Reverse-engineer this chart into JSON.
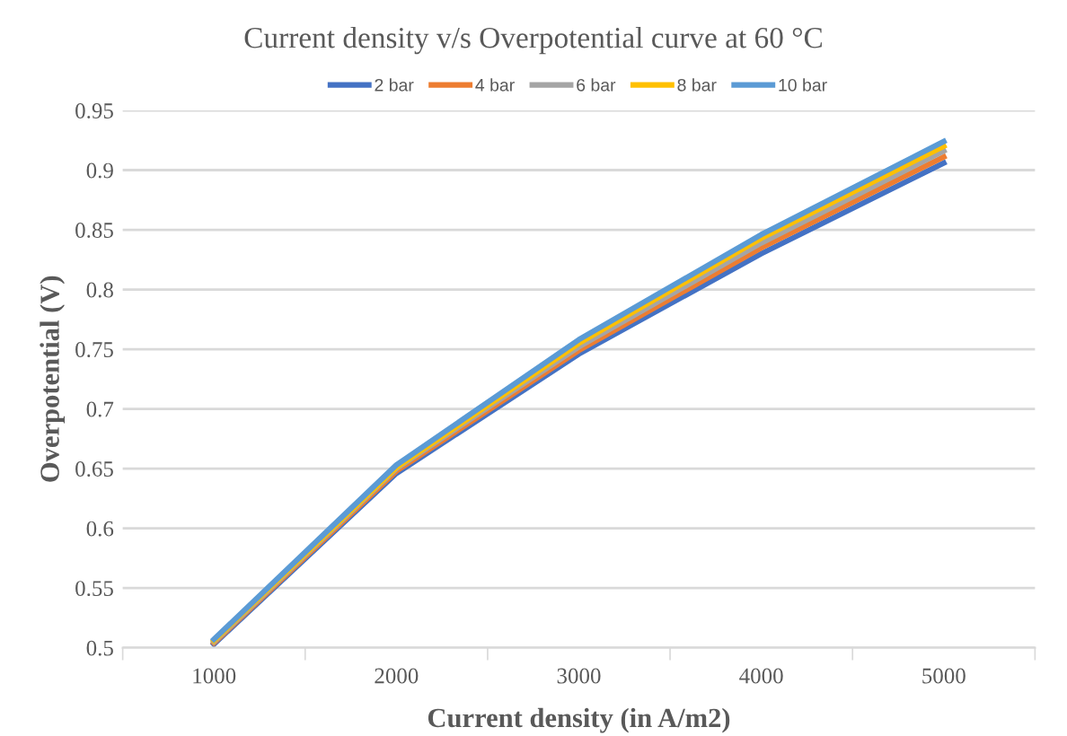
{
  "chart_data": {
    "type": "line",
    "title": "Current density v/s Overpotential curve at 60 °C",
    "xlabel": "Current density (in A/m2)",
    "ylabel": "Overpotential (V)",
    "categories": [
      "1000",
      "2000",
      "3000",
      "4000",
      "5000"
    ],
    "series": [
      {
        "name": "2 bar",
        "color": "#4472c4",
        "values": [
          0.503,
          0.646,
          0.746,
          0.83,
          0.906
        ]
      },
      {
        "name": "4 bar",
        "color": "#ed7d31",
        "values": [
          0.504,
          0.648,
          0.749,
          0.835,
          0.911
        ]
      },
      {
        "name": "6 bar",
        "color": "#a5a5a5",
        "values": [
          0.505,
          0.65,
          0.752,
          0.839,
          0.916
        ]
      },
      {
        "name": "8 bar",
        "color": "#ffc000",
        "values": [
          0.506,
          0.651,
          0.755,
          0.843,
          0.92
        ]
      },
      {
        "name": "10 bar",
        "color": "#5b9bd5",
        "values": [
          0.507,
          0.653,
          0.758,
          0.846,
          0.924
        ]
      }
    ],
    "ylim": [
      0.5,
      0.95
    ],
    "yticks": [
      0.5,
      0.55,
      0.6,
      0.65,
      0.7,
      0.75,
      0.8,
      0.85,
      0.9,
      0.95
    ],
    "grid": "y",
    "legend": "top",
    "marker": "none",
    "line_style": "solid"
  }
}
